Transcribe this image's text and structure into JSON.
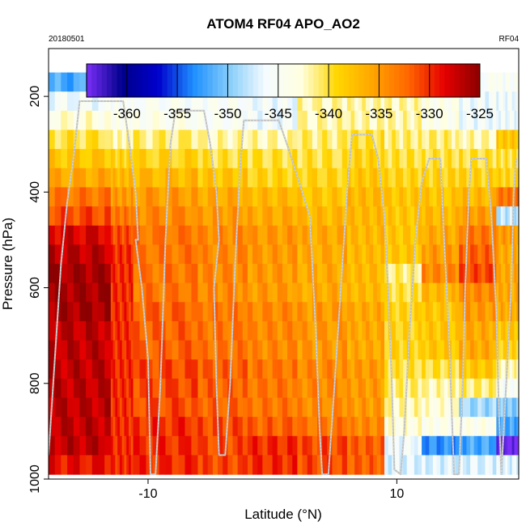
{
  "chart_data": {
    "type": "heatmap",
    "title": "ATOM4 RF04 APO_AO2",
    "left_note": "20180501",
    "right_note": "RF04",
    "xlabel": "Latitude (°N)",
    "ylabel": "Pressure (hPa)",
    "xlim": [
      -18,
      19.8
    ],
    "ylim": [
      1000,
      100
    ],
    "x_ticks": [
      -10,
      10
    ],
    "y_ticks": [
      200,
      400,
      600,
      800,
      1000
    ],
    "colorbar": {
      "range": [
        -364,
        -325
      ],
      "ticks": [
        -360,
        -355,
        -350,
        -345,
        -340,
        -335,
        -330,
        -325
      ],
      "colors": [
        "#7b2ff7",
        "#00008b",
        "#0000cd",
        "#1e90ff",
        "#87cefa",
        "#f5fbff",
        "#ffffe0",
        "#ffd700",
        "#ffa500",
        "#ff6600",
        "#e60000",
        "#8b0000"
      ]
    },
    "pressure_levels": [
      170,
      210,
      250,
      290,
      330,
      370,
      410,
      450,
      490,
      530,
      570,
      610,
      650,
      690,
      730,
      770,
      810,
      850,
      890,
      930,
      970
    ],
    "lat_bands": [
      {
        "x0": -18.0,
        "x1": -13.0,
        "values": [
          -352,
          -346,
          -343,
          -340,
          -338,
          -336,
          -333,
          -331,
          -328,
          -327,
          -326,
          -326,
          -326,
          -327,
          -327,
          -327,
          -327,
          -327,
          -327,
          -327,
          -329
        ]
      },
      {
        "x0": -13.0,
        "x1": -11.2,
        "values": [
          -347,
          -345,
          -344,
          -342,
          -339,
          -337,
          -335,
          -333,
          -331,
          -330,
          -330,
          -330,
          -330,
          -330,
          -330,
          -330,
          -330,
          -330,
          -330,
          -330,
          -330
        ]
      },
      {
        "x0": -11.2,
        "x1": -6.0,
        "values": [
          -347,
          -345,
          -344,
          -341,
          -339,
          -337,
          -335,
          -334,
          -333,
          -333,
          -333,
          -333,
          -332,
          -332,
          -332,
          -331,
          -331,
          -331,
          -330,
          -330,
          -330
        ]
      },
      {
        "x0": -6.0,
        "x1": -2.0,
        "values": [
          -346,
          -345,
          -345,
          -342,
          -340,
          -338,
          -336,
          -335,
          -334,
          -334,
          -334,
          -334,
          -333,
          -333,
          -333,
          -332,
          -332,
          -332,
          -331,
          -331,
          -331
        ]
      },
      {
        "x0": -2.0,
        "x1": 2.0,
        "values": [
          -346,
          -346,
          -346,
          -342,
          -340,
          -339,
          -337,
          -336,
          -335,
          -335,
          -335,
          -335,
          -334,
          -334,
          -334,
          -333,
          -333,
          -333,
          -332,
          -330,
          -330
        ]
      },
      {
        "x0": 2.0,
        "x1": 6.0,
        "values": [
          -345,
          -342,
          -342,
          -341,
          -340,
          -339,
          -338,
          -337,
          -336,
          -336,
          -336,
          -336,
          -335,
          -335,
          -335,
          -334,
          -334,
          -334,
          -333,
          -331,
          -331
        ]
      },
      {
        "x0": 6.0,
        "x1": 9.0,
        "values": [
          -345,
          -342,
          -342,
          -340,
          -339,
          -338,
          -337,
          -337,
          -337,
          -337,
          -337,
          -337,
          -336,
          -336,
          -336,
          -335,
          -335,
          -335,
          -334,
          -332,
          -332
        ]
      },
      {
        "x0": 9.0,
        "x1": 12.0,
        "values": [
          -345,
          -342,
          -342,
          -341,
          -340,
          -339,
          -338,
          -338,
          -338,
          -338,
          -341,
          -340,
          -339,
          -339,
          -339,
          -340,
          -341,
          -342,
          -343,
          -346,
          -347
        ]
      },
      {
        "x0": 12.0,
        "x1": 15.0,
        "values": [
          -345,
          -344,
          -344,
          -341,
          -340,
          -339,
          -338,
          -337,
          -336,
          -335,
          -334,
          -337,
          -338,
          -338,
          -338,
          -340,
          -342,
          -343,
          -344,
          -353,
          -347
        ]
      },
      {
        "x0": 15.0,
        "x1": 18.0,
        "values": [
          -345,
          -346,
          -346,
          -342,
          -340,
          -339,
          -337,
          -335,
          -333,
          -332,
          -331,
          -334,
          -335,
          -336,
          -336,
          -338,
          -341,
          -349,
          -344,
          -352,
          -347
        ]
      },
      {
        "x0": 18.0,
        "x1": 19.8,
        "values": [
          -345,
          -346,
          -346,
          -338,
          -340,
          -339,
          -333,
          -348,
          -335,
          -336,
          -336,
          -336,
          -336,
          -338,
          -339,
          -342,
          -345,
          -350,
          -352,
          -364,
          -347
        ]
      }
    ],
    "flight_track": [
      [
        -18,
        950
      ],
      [
        -17.5,
        750
      ],
      [
        -17,
        550
      ],
      [
        -16.5,
        420
      ],
      [
        -16,
        330
      ],
      [
        -15.5,
        210
      ],
      [
        -12,
        210
      ],
      [
        -11.5,
        300
      ],
      [
        -11,
        400
      ],
      [
        -10.8,
        500
      ],
      [
        -11,
        500
      ],
      [
        -10.5,
        600
      ],
      [
        -10,
        750
      ],
      [
        -9.8,
        990
      ],
      [
        -9.4,
        990
      ],
      [
        -9,
        800
      ],
      [
        -8.6,
        500
      ],
      [
        -8.2,
        300
      ],
      [
        -7.8,
        230
      ],
      [
        -5.5,
        230
      ],
      [
        -5,
        300
      ],
      [
        -4.5,
        400
      ],
      [
        -4.3,
        500
      ],
      [
        -4.7,
        600
      ],
      [
        -4.5,
        800
      ],
      [
        -4.3,
        950
      ],
      [
        -3.8,
        950
      ],
      [
        -3.4,
        800
      ],
      [
        -3,
        550
      ],
      [
        -2.6,
        350
      ],
      [
        -2.3,
        250
      ],
      [
        0.5,
        250
      ],
      [
        1.3,
        310
      ],
      [
        3,
        450
      ],
      [
        3.5,
        700
      ],
      [
        3.8,
        900
      ],
      [
        4,
        990
      ],
      [
        4.5,
        990
      ],
      [
        5,
        800
      ],
      [
        5.5,
        600
      ],
      [
        6,
        400
      ],
      [
        6.4,
        280
      ],
      [
        8,
        280
      ],
      [
        8.5,
        330
      ],
      [
        9,
        450
      ],
      [
        9.3,
        600
      ],
      [
        9.6,
        800
      ],
      [
        9.8,
        980
      ],
      [
        10.3,
        990
      ],
      [
        10.6,
        900
      ],
      [
        11,
        700
      ],
      [
        11.5,
        500
      ],
      [
        12,
        380
      ],
      [
        12.6,
        330
      ],
      [
        13.5,
        330
      ],
      [
        13.8,
        500
      ],
      [
        14.2,
        700
      ],
      [
        14.4,
        850
      ],
      [
        14.6,
        990
      ],
      [
        15.0,
        990
      ],
      [
        15.3,
        800
      ],
      [
        15.5,
        600
      ],
      [
        15.8,
        400
      ],
      [
        16,
        330
      ],
      [
        17.2,
        330
      ],
      [
        17.6,
        450
      ],
      [
        18.0,
        650
      ],
      [
        18.2,
        850
      ],
      [
        18.4,
        990
      ],
      [
        18.8,
        800
      ],
      [
        19.2,
        600
      ],
      [
        19.4,
        400
      ],
      [
        19.6,
        330
      ]
    ]
  }
}
